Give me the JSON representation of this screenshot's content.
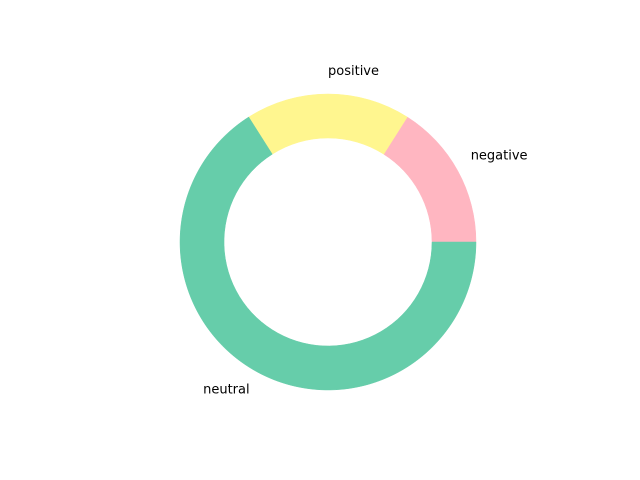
{
  "chart_data": {
    "type": "pie",
    "style": "donut",
    "categories": [
      "negative",
      "positive",
      "neutral"
    ],
    "values": [
      16,
      18,
      66
    ],
    "value_unit": "percent of total",
    "colors": [
      "#ffb6c1",
      "#fff68f",
      "#66cdaa"
    ],
    "start_angle_deg": 0,
    "direction": "counterclockwise",
    "legend": "none"
  }
}
